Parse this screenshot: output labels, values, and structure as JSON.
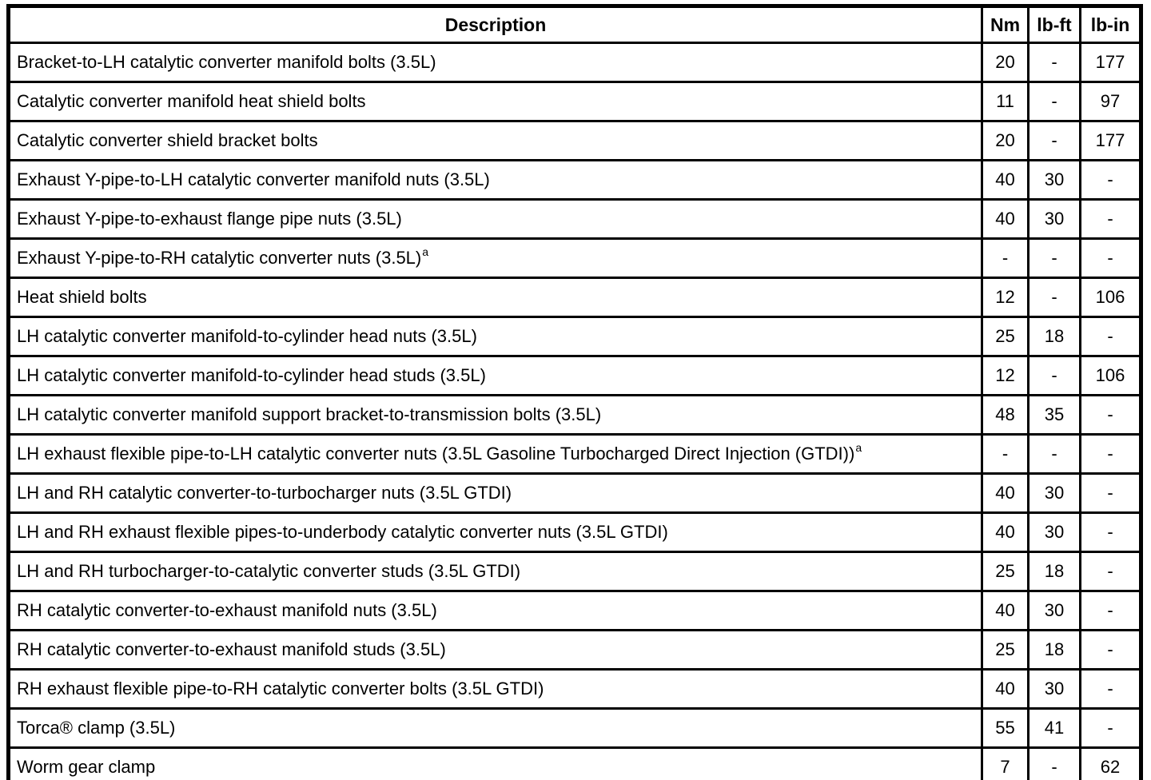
{
  "colors": {
    "border": "#000000",
    "background": "#ffffff",
    "text": "#000000"
  },
  "table": {
    "columns": [
      "Description",
      "Nm",
      "lb-ft",
      "lb-in"
    ],
    "rows": [
      {
        "description": "Bracket-to-LH catalytic converter manifold bolts (3.5L)",
        "footnote": "",
        "nm": "20",
        "lb_ft": "-",
        "lb_in": "177"
      },
      {
        "description": "Catalytic converter manifold heat shield bolts",
        "footnote": "",
        "nm": "11",
        "lb_ft": "-",
        "lb_in": "97"
      },
      {
        "description": "Catalytic converter shield bracket bolts",
        "footnote": "",
        "nm": "20",
        "lb_ft": "-",
        "lb_in": "177"
      },
      {
        "description": "Exhaust Y-pipe-to-LH catalytic converter manifold nuts (3.5L)",
        "footnote": "",
        "nm": "40",
        "lb_ft": "30",
        "lb_in": "-"
      },
      {
        "description": "Exhaust Y-pipe-to-exhaust flange pipe nuts (3.5L)",
        "footnote": "",
        "nm": "40",
        "lb_ft": "30",
        "lb_in": "-"
      },
      {
        "description": "Exhaust Y-pipe-to-RH catalytic converter nuts (3.5L)",
        "footnote": "a",
        "nm": "-",
        "lb_ft": "-",
        "lb_in": "-"
      },
      {
        "description": "Heat shield bolts",
        "footnote": "",
        "nm": "12",
        "lb_ft": "-",
        "lb_in": "106"
      },
      {
        "description": "LH catalytic converter manifold-to-cylinder head nuts (3.5L)",
        "footnote": "",
        "nm": "25",
        "lb_ft": "18",
        "lb_in": "-"
      },
      {
        "description": "LH catalytic converter manifold-to-cylinder head studs (3.5L)",
        "footnote": "",
        "nm": "12",
        "lb_ft": "-",
        "lb_in": "106"
      },
      {
        "description": "LH catalytic converter manifold support bracket-to-transmission bolts (3.5L)",
        "footnote": "",
        "nm": "48",
        "lb_ft": "35",
        "lb_in": "-"
      },
      {
        "description": "LH exhaust flexible pipe-to-LH catalytic converter nuts (3.5L Gasoline Turbocharged Direct Injection (GTDI))",
        "footnote": "a",
        "nm": "-",
        "lb_ft": "-",
        "lb_in": "-"
      },
      {
        "description": "LH and RH catalytic converter-to-turbocharger nuts (3.5L GTDI)",
        "footnote": "",
        "nm": "40",
        "lb_ft": "30",
        "lb_in": "-"
      },
      {
        "description": "LH and RH exhaust flexible pipes-to-underbody catalytic converter nuts (3.5L GTDI)",
        "footnote": "",
        "nm": "40",
        "lb_ft": "30",
        "lb_in": "-"
      },
      {
        "description": "LH and RH turbocharger-to-catalytic converter studs (3.5L GTDI)",
        "footnote": "",
        "nm": "25",
        "lb_ft": "18",
        "lb_in": "-"
      },
      {
        "description": "RH catalytic converter-to-exhaust manifold nuts (3.5L)",
        "footnote": "",
        "nm": "40",
        "lb_ft": "30",
        "lb_in": "-"
      },
      {
        "description": "RH catalytic converter-to-exhaust manifold studs (3.5L)",
        "footnote": "",
        "nm": "25",
        "lb_ft": "18",
        "lb_in": "-"
      },
      {
        "description": "RH exhaust flexible pipe-to-RH catalytic converter bolts (3.5L GTDI)",
        "footnote": "",
        "nm": "40",
        "lb_ft": "30",
        "lb_in": "-"
      },
      {
        "description": "Torca® clamp (3.5L)",
        "footnote": "",
        "nm": "55",
        "lb_ft": "41",
        "lb_in": "-"
      },
      {
        "description": "Worm gear clamp",
        "footnote": "",
        "nm": "7",
        "lb_ft": "-",
        "lb_in": "62"
      }
    ]
  }
}
